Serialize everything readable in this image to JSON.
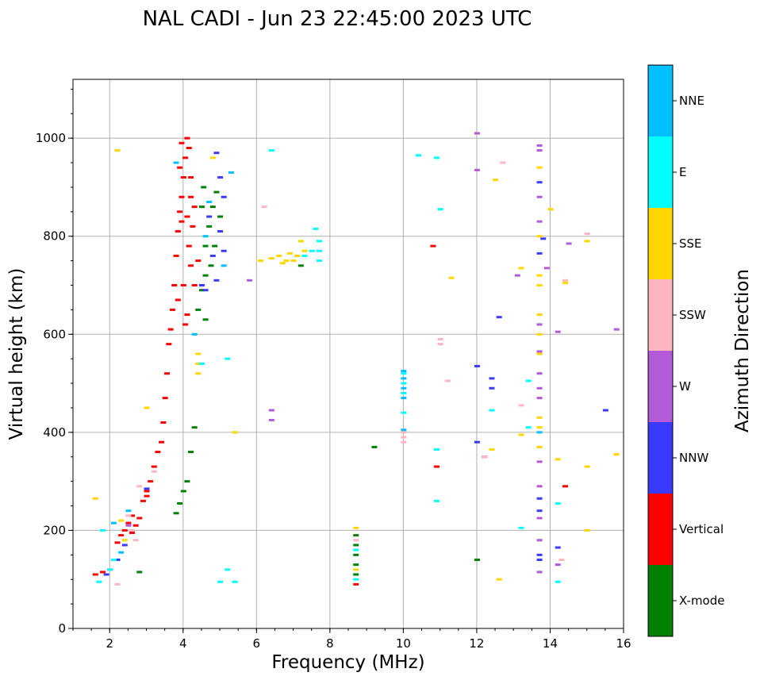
{
  "chart_data": {
    "type": "scatter",
    "title": "NAL CADI - Jun 23 22:45:00 2023 UTC",
    "xlabel": "Frequency (MHz)",
    "ylabel": "Virtual height (km)",
    "xlim": [
      1,
      16
    ],
    "ylim": [
      0,
      1120
    ],
    "xticks": [
      "2",
      "4",
      "6",
      "8",
      "10",
      "12",
      "14",
      "16"
    ],
    "yticks": [
      "0",
      "200",
      "400",
      "600",
      "800",
      "1000"
    ],
    "grid": true,
    "colorbar": {
      "label": "Azimuth Direction",
      "categories": [
        {
          "name": "X-mode",
          "color": "#008000"
        },
        {
          "name": "Vertical",
          "color": "#ff0000"
        },
        {
          "name": "NNW",
          "color": "#3a3aff"
        },
        {
          "name": "W",
          "color": "#b35ad8"
        },
        {
          "name": "SSW",
          "color": "#ffb6c1"
        },
        {
          "name": "SSE",
          "color": "#ffd700"
        },
        {
          "name": "E",
          "color": "#00ffff"
        },
        {
          "name": "NNE",
          "color": "#00bfff"
        }
      ]
    },
    "series": [
      {
        "name": "Vertical",
        "points": [
          [
            1.6,
            110
          ],
          [
            1.8,
            115
          ],
          [
            2.0,
            120
          ],
          [
            2.2,
            175
          ],
          [
            2.4,
            200
          ],
          [
            2.5,
            215
          ],
          [
            2.6,
            230
          ],
          [
            2.7,
            210
          ],
          [
            2.8,
            225
          ],
          [
            2.9,
            260
          ],
          [
            3.0,
            280
          ],
          [
            3.1,
            300
          ],
          [
            3.2,
            330
          ],
          [
            3.3,
            360
          ],
          [
            3.4,
            380
          ],
          [
            3.45,
            420
          ],
          [
            3.5,
            470
          ],
          [
            3.55,
            520
          ],
          [
            3.6,
            580
          ],
          [
            3.65,
            610
          ],
          [
            3.7,
            650
          ],
          [
            3.75,
            700
          ],
          [
            3.8,
            760
          ],
          [
            3.85,
            810
          ],
          [
            3.9,
            850
          ],
          [
            3.95,
            880
          ],
          [
            4.0,
            920
          ],
          [
            4.05,
            960
          ],
          [
            4.1,
            1000
          ],
          [
            4.15,
            980
          ],
          [
            4.0,
            700
          ],
          [
            4.1,
            640
          ],
          [
            4.2,
            740
          ],
          [
            4.25,
            820
          ],
          [
            4.15,
            780
          ],
          [
            4.05,
            620
          ],
          [
            3.9,
            940
          ],
          [
            3.95,
            990
          ],
          [
            4.2,
            880
          ],
          [
            4.3,
            860
          ],
          [
            10.8,
            780
          ],
          [
            10.9,
            330
          ],
          [
            12.2,
            350
          ],
          [
            14.4,
            290
          ],
          [
            2.3,
            190
          ],
          [
            2.6,
            195
          ],
          [
            3.0,
            270
          ],
          [
            4.3,
            700
          ],
          [
            4.4,
            750
          ],
          [
            3.85,
            670
          ],
          [
            8.7,
            90
          ],
          [
            4.2,
            920
          ],
          [
            4.1,
            840
          ],
          [
            3.95,
            830
          ]
        ]
      },
      {
        "name": "X-mode",
        "points": [
          [
            4.2,
            360
          ],
          [
            4.3,
            410
          ],
          [
            4.0,
            280
          ],
          [
            4.1,
            300
          ],
          [
            3.8,
            235
          ],
          [
            3.9,
            255
          ],
          [
            4.4,
            650
          ],
          [
            4.5,
            690
          ],
          [
            4.6,
            720
          ],
          [
            4.7,
            820
          ],
          [
            4.8,
            860
          ],
          [
            4.9,
            890
          ],
          [
            4.6,
            780
          ],
          [
            4.75,
            740
          ],
          [
            4.55,
            900
          ],
          [
            4.5,
            860
          ],
          [
            4.85,
            780
          ],
          [
            5.0,
            840
          ],
          [
            7.2,
            740
          ],
          [
            9.2,
            370
          ],
          [
            12.0,
            140
          ],
          [
            8.7,
            150
          ],
          [
            8.7,
            130
          ],
          [
            8.7,
            110
          ],
          [
            8.7,
            170
          ],
          [
            8.7,
            190
          ],
          [
            2.8,
            115
          ],
          [
            4.6,
            630
          ]
        ]
      },
      {
        "name": "NNW",
        "points": [
          [
            4.9,
            970
          ],
          [
            5.0,
            920
          ],
          [
            5.1,
            880
          ],
          [
            5.0,
            810
          ],
          [
            4.7,
            840
          ],
          [
            4.8,
            760
          ],
          [
            4.9,
            710
          ],
          [
            4.6,
            690
          ],
          [
            4.5,
            700
          ],
          [
            5.1,
            770
          ],
          [
            12.0,
            380
          ],
          [
            12.4,
            490
          ],
          [
            12.4,
            510
          ],
          [
            12.6,
            635
          ],
          [
            13.7,
            910
          ],
          [
            13.8,
            795
          ],
          [
            13.7,
            765
          ],
          [
            15.5,
            445
          ],
          [
            13.7,
            140
          ],
          [
            13.7,
            150
          ],
          [
            13.7,
            265
          ],
          [
            13.7,
            240
          ],
          [
            14.2,
            165
          ],
          [
            2.4,
            170
          ],
          [
            2.2,
            140
          ],
          [
            1.9,
            110
          ],
          [
            3.0,
            285
          ],
          [
            12.0,
            535
          ]
        ]
      },
      {
        "name": "W",
        "points": [
          [
            12.0,
            1010
          ],
          [
            12.0,
            935
          ],
          [
            13.7,
            985
          ],
          [
            13.7,
            975
          ],
          [
            13.7,
            880
          ],
          [
            13.7,
            830
          ],
          [
            13.7,
            520
          ],
          [
            13.7,
            490
          ],
          [
            13.9,
            735
          ],
          [
            14.5,
            785
          ],
          [
            14.2,
            605
          ],
          [
            15.8,
            610
          ],
          [
            13.1,
            720
          ],
          [
            13.7,
            620
          ],
          [
            13.7,
            470
          ],
          [
            13.7,
            340
          ],
          [
            13.7,
            290
          ],
          [
            13.7,
            225
          ],
          [
            13.7,
            180
          ],
          [
            13.7,
            115
          ],
          [
            6.4,
            445
          ],
          [
            6.4,
            425
          ],
          [
            5.8,
            710
          ],
          [
            2.5,
            210
          ],
          [
            14.2,
            130
          ],
          [
            13.7,
            565
          ]
        ]
      },
      {
        "name": "SSW",
        "points": [
          [
            6.2,
            860
          ],
          [
            11.0,
            590
          ],
          [
            11.0,
            580
          ],
          [
            11.2,
            505
          ],
          [
            12.7,
            950
          ],
          [
            13.2,
            455
          ],
          [
            14.4,
            710
          ],
          [
            14.4,
            705
          ],
          [
            15.0,
            805
          ],
          [
            10.0,
            380
          ],
          [
            10.0,
            400
          ],
          [
            10.0,
            390
          ],
          [
            2.2,
            90
          ],
          [
            2.6,
            200
          ],
          [
            2.7,
            180
          ],
          [
            2.5,
            230
          ],
          [
            2.8,
            290
          ],
          [
            3.2,
            320
          ],
          [
            12.2,
            350
          ],
          [
            14.3,
            140
          ],
          [
            8.7,
            180
          ]
        ]
      },
      {
        "name": "SSE",
        "points": [
          [
            6.4,
            755
          ],
          [
            6.6,
            760
          ],
          [
            6.7,
            745
          ],
          [
            6.8,
            750
          ],
          [
            6.9,
            765
          ],
          [
            7.0,
            750
          ],
          [
            7.1,
            760
          ],
          [
            7.2,
            790
          ],
          [
            7.3,
            770
          ],
          [
            6.1,
            750
          ],
          [
            4.4,
            560
          ],
          [
            4.4,
            540
          ],
          [
            4.4,
            520
          ],
          [
            4.8,
            960
          ],
          [
            3.0,
            450
          ],
          [
            5.4,
            400
          ],
          [
            13.7,
            940
          ],
          [
            13.7,
            800
          ],
          [
            13.7,
            700
          ],
          [
            13.7,
            640
          ],
          [
            13.7,
            600
          ],
          [
            13.7,
            560
          ],
          [
            13.7,
            430
          ],
          [
            13.7,
            410
          ],
          [
            13.7,
            370
          ],
          [
            13.2,
            395
          ],
          [
            13.2,
            735
          ],
          [
            12.4,
            365
          ],
          [
            12.5,
            915
          ],
          [
            12.6,
            100
          ],
          [
            14.0,
            855
          ],
          [
            14.4,
            705
          ],
          [
            14.2,
            345
          ],
          [
            15.0,
            790
          ],
          [
            15.0,
            330
          ],
          [
            15.0,
            200
          ],
          [
            15.8,
            355
          ],
          [
            11.3,
            715
          ],
          [
            2.2,
            975
          ],
          [
            8.7,
            205
          ],
          [
            8.7,
            120
          ],
          [
            2.3,
            220
          ],
          [
            2.4,
            180
          ],
          [
            1.6,
            265
          ],
          [
            13.7,
            720
          ]
        ]
      },
      {
        "name": "E",
        "points": [
          [
            6.4,
            975
          ],
          [
            10.4,
            965
          ],
          [
            10.9,
            960
          ],
          [
            11.0,
            855
          ],
          [
            10.0,
            520
          ],
          [
            10.0,
            500
          ],
          [
            10.0,
            480
          ],
          [
            10.0,
            440
          ],
          [
            10.9,
            365
          ],
          [
            10.9,
            260
          ],
          [
            7.7,
            790
          ],
          [
            7.7,
            770
          ],
          [
            7.7,
            750
          ],
          [
            7.5,
            770
          ],
          [
            7.3,
            760
          ],
          [
            7.6,
            815
          ],
          [
            12.4,
            445
          ],
          [
            13.4,
            505
          ],
          [
            13.2,
            205
          ],
          [
            14.2,
            255
          ],
          [
            14.2,
            95
          ],
          [
            13.4,
            410
          ],
          [
            5.2,
            550
          ],
          [
            5.2,
            120
          ],
          [
            5.4,
            95
          ],
          [
            5.0,
            95
          ],
          [
            2.0,
            120
          ],
          [
            2.1,
            140
          ],
          [
            1.7,
            95
          ],
          [
            1.8,
            200
          ],
          [
            8.7,
            160
          ],
          [
            8.7,
            100
          ],
          [
            4.5,
            540
          ]
        ]
      },
      {
        "name": "NNE",
        "points": [
          [
            10.0,
            525
          ],
          [
            10.0,
            510
          ],
          [
            10.0,
            490
          ],
          [
            10.0,
            470
          ],
          [
            10.0,
            405
          ],
          [
            3.8,
            950
          ],
          [
            4.6,
            800
          ],
          [
            4.7,
            870
          ],
          [
            5.1,
            740
          ],
          [
            2.1,
            215
          ],
          [
            2.3,
            155
          ],
          [
            2.5,
            240
          ],
          [
            4.3,
            600
          ],
          [
            5.3,
            930
          ],
          [
            13.7,
            400
          ]
        ]
      }
    ]
  }
}
